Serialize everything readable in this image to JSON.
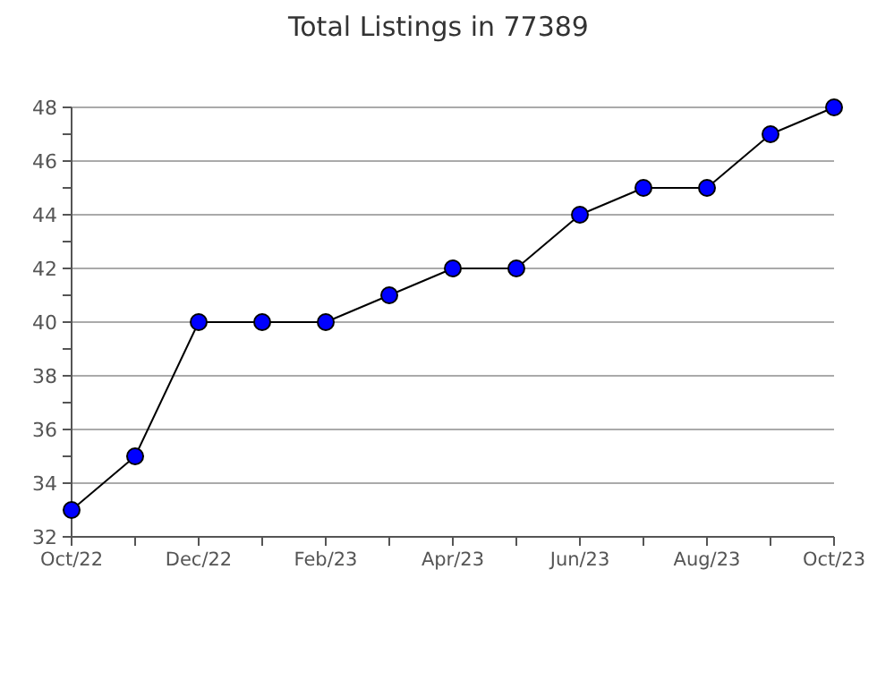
{
  "chart_data": {
    "type": "line",
    "title": "Total Listings in 77389",
    "categories": [
      "Oct/22",
      null,
      "Dec/22",
      null,
      "Feb/23",
      null,
      "Apr/23",
      null,
      "Jun/23",
      null,
      "Aug/23",
      null,
      "Oct/23"
    ],
    "series": [
      {
        "color": "#0000ff",
        "values": [
          33,
          35,
          40,
          40,
          40,
          41,
          42,
          42,
          44,
          45,
          45,
          47,
          48
        ]
      }
    ],
    "ylim": [
      32,
      48
    ],
    "yticks": [
      32,
      {
        "value": 33,
        "label": null
      },
      34,
      {
        "value": 35,
        "label": null
      },
      36,
      {
        "value": 37,
        "label": null
      },
      38,
      {
        "value": 39,
        "label": null
      },
      40,
      {
        "value": 41,
        "label": null
      },
      42,
      {
        "value": 43,
        "label": null
      },
      44,
      {
        "value": 45,
        "label": null
      },
      46,
      {
        "value": 47,
        "label": null
      },
      48
    ],
    "grid": "y",
    "marker": "circle",
    "line_style": "solid"
  }
}
